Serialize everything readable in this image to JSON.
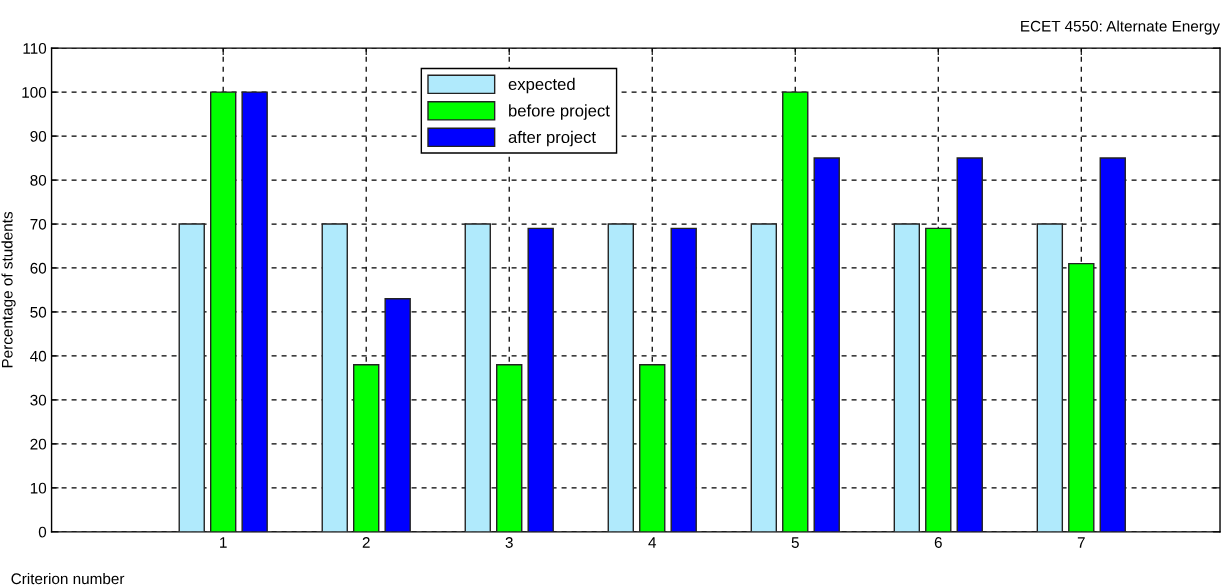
{
  "chart_data": {
    "type": "bar",
    "title": "ECET 4550: Alternate Energy",
    "xlabel": "Criterion number",
    "ylabel": "Percentage of students",
    "categories": [
      "1",
      "2",
      "3",
      "4",
      "5",
      "6",
      "7"
    ],
    "series": [
      {
        "name": "expected",
        "color": "#b0eafc",
        "values": [
          70,
          70,
          70,
          70,
          70,
          70,
          70
        ]
      },
      {
        "name": "before project",
        "color": "#00ff00",
        "values": [
          100,
          38,
          38,
          38,
          100,
          69,
          61
        ]
      },
      {
        "name": "after project",
        "color": "#0000ff",
        "values": [
          100,
          53,
          69,
          69,
          85,
          85,
          85
        ]
      }
    ],
    "ylim": [
      0,
      110
    ],
    "yticks": [
      0,
      10,
      20,
      30,
      40,
      50,
      60,
      70,
      80,
      90,
      100,
      110
    ],
    "grid": true,
    "legend": "top"
  }
}
